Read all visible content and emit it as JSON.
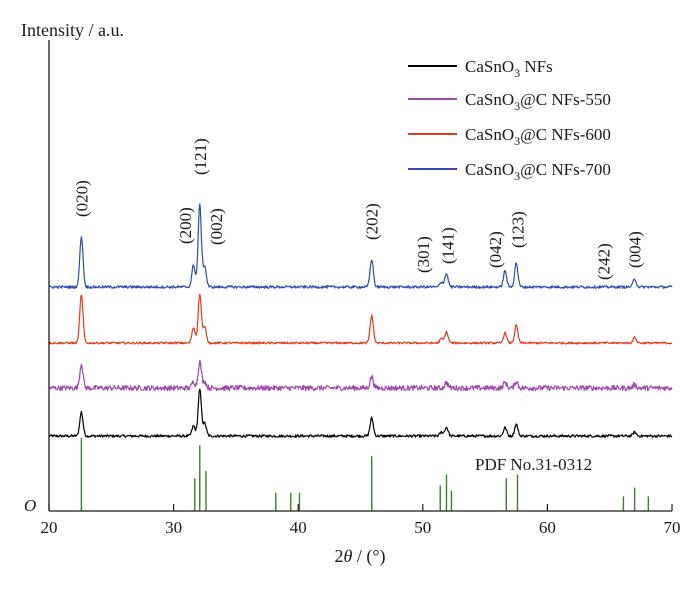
{
  "chart_data": {
    "type": "line",
    "title": "",
    "ylabel": "Intensity / a.u.",
    "xlabel_prefix": "2",
    "xlabel_symbol": "θ",
    "xlabel_suffix": " / (°)",
    "origin_label": "O",
    "xlim": [
      20,
      70
    ],
    "xticks": [
      20,
      30,
      40,
      50,
      60,
      70
    ],
    "grid": false,
    "legend_position": "top-right",
    "series": [
      {
        "name": "CaSnO3 NFs",
        "label_main": "CaSnO",
        "label_sub": "3",
        "label_rest": " NFs",
        "color": "#000000",
        "peaks": [
          [
            22.6,
            5.7
          ],
          [
            31.6,
            2.4
          ],
          [
            32.1,
            11.0
          ],
          [
            32.5,
            3.0
          ],
          [
            45.9,
            4.3
          ],
          [
            51.5,
            0.9
          ],
          [
            51.9,
            2.1
          ],
          [
            56.6,
            2.0
          ],
          [
            57.5,
            2.8
          ],
          [
            67.0,
            0.9
          ]
        ]
      },
      {
        "name": "CaSnO3@C NFs-550",
        "label_main": "CaSnO",
        "label_sub": "3",
        "label_rest": "@C NFs-550",
        "color": "#9b4aa6",
        "peaks": [
          [
            22.6,
            5.8
          ],
          [
            31.6,
            1.5
          ],
          [
            32.1,
            6.3
          ],
          [
            32.5,
            1.5
          ],
          [
            45.9,
            2.7
          ],
          [
            51.9,
            1.3
          ],
          [
            56.6,
            1.3
          ],
          [
            57.5,
            1.6
          ],
          [
            67.0,
            0.8
          ]
        ]
      },
      {
        "name": "CaSnO3@C NFs-600",
        "label_main": "CaSnO",
        "label_sub": "3",
        "label_rest": "@C NFs-600",
        "color": "#e03a1e",
        "peaks": [
          [
            22.6,
            11.6
          ],
          [
            31.6,
            3.7
          ],
          [
            32.1,
            11.6
          ],
          [
            32.5,
            3.7
          ],
          [
            45.9,
            6.5
          ],
          [
            51.5,
            1.0
          ],
          [
            51.9,
            2.6
          ],
          [
            56.6,
            2.4
          ],
          [
            57.5,
            4.2
          ],
          [
            67.0,
            1.3
          ]
        ]
      },
      {
        "name": "CaSnO3@C NFs-700",
        "label_main": "CaSnO",
        "label_sub": "3",
        "label_rest": "@C NFs-700",
        "color": "#2f4bb0",
        "peaks": [
          [
            22.6,
            12.1
          ],
          [
            31.6,
            5.3
          ],
          [
            32.1,
            19.5
          ],
          [
            32.5,
            4.9
          ],
          [
            45.9,
            6.6
          ],
          [
            51.5,
            1.2
          ],
          [
            51.9,
            3.2
          ],
          [
            56.6,
            3.8
          ],
          [
            57.5,
            5.8
          ],
          [
            67.0,
            1.9
          ]
        ]
      }
    ],
    "reference": {
      "label": "PDF No.31-0312",
      "color": "#3f7d2a",
      "lines": [
        [
          22.6,
          100
        ],
        [
          31.7,
          45
        ],
        [
          32.1,
          90
        ],
        [
          32.6,
          55
        ],
        [
          38.2,
          25
        ],
        [
          39.4,
          25
        ],
        [
          40.1,
          25
        ],
        [
          45.9,
          75
        ],
        [
          51.4,
          35
        ],
        [
          51.9,
          50
        ],
        [
          52.3,
          28
        ],
        [
          56.7,
          45
        ],
        [
          57.6,
          50
        ],
        [
          66.1,
          20
        ],
        [
          67.0,
          32
        ],
        [
          68.1,
          20
        ]
      ]
    },
    "annotations": [
      {
        "text": "(020)",
        "x": 22.6
      },
      {
        "text": "(200)",
        "x": 30.9
      },
      {
        "text": "(121)",
        "x": 32.1
      },
      {
        "text": "(002)",
        "x": 33.4
      },
      {
        "text": "(202)",
        "x": 45.9
      },
      {
        "text": "(301)",
        "x": 50.0
      },
      {
        "text": "(141)",
        "x": 52.0
      },
      {
        "text": "(042)",
        "x": 55.8
      },
      {
        "text": "(123)",
        "x": 57.6
      },
      {
        "text": "(242)",
        "x": 64.5
      },
      {
        "text": "(004)",
        "x": 67.0
      }
    ]
  }
}
